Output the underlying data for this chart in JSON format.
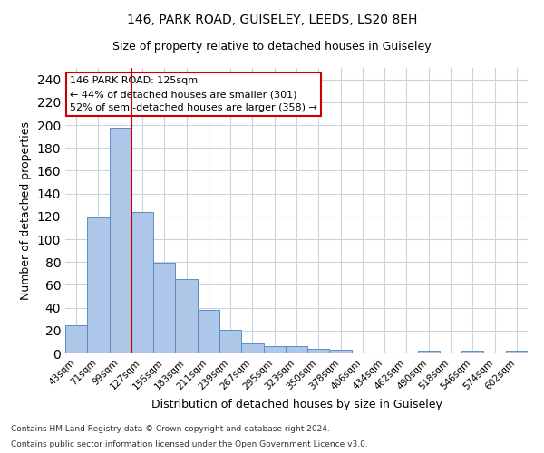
{
  "title1": "146, PARK ROAD, GUISELEY, LEEDS, LS20 8EH",
  "title2": "Size of property relative to detached houses in Guiseley",
  "xlabel": "Distribution of detached houses by size in Guiseley",
  "ylabel": "Number of detached properties",
  "bin_labels": [
    "43sqm",
    "71sqm",
    "99sqm",
    "127sqm",
    "155sqm",
    "183sqm",
    "211sqm",
    "239sqm",
    "267sqm",
    "295sqm",
    "323sqm",
    "350sqm",
    "378sqm",
    "406sqm",
    "434sqm",
    "462sqm",
    "490sqm",
    "518sqm",
    "546sqm",
    "574sqm",
    "602sqm"
  ],
  "bar_values": [
    25,
    119,
    198,
    124,
    79,
    65,
    38,
    21,
    9,
    6,
    6,
    4,
    3,
    0,
    0,
    0,
    2,
    0,
    2,
    0,
    2
  ],
  "bar_color": "#aec6e8",
  "bar_edgecolor": "#5a8fc2",
  "vline_bin_index": 3,
  "vline_color": "#cc0000",
  "annotation_text": "146 PARK ROAD: 125sqm\n← 44% of detached houses are smaller (301)\n52% of semi-detached houses are larger (358) →",
  "annotation_box_edgecolor": "#cc0000",
  "ylim": [
    0,
    250
  ],
  "yticks": [
    0,
    20,
    40,
    60,
    80,
    100,
    120,
    140,
    160,
    180,
    200,
    220,
    240
  ],
  "footer1": "Contains HM Land Registry data © Crown copyright and database right 2024.",
  "footer2": "Contains public sector information licensed under the Open Government Licence v3.0.",
  "bg_color": "#ffffff",
  "grid_color": "#c8d4e0"
}
